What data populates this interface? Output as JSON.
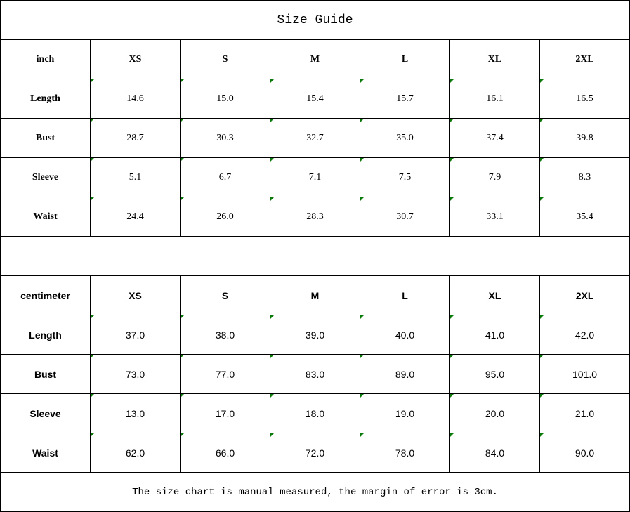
{
  "title": "Size Guide",
  "indicator_color": "#0a7a0a",
  "tables": [
    {
      "unit": "inch",
      "sizes": [
        "XS",
        "S",
        "M",
        "L",
        "XL",
        "2XL"
      ],
      "rows": [
        {
          "label": "Length",
          "values": [
            "14.6",
            "15.0",
            "15.4",
            "15.7",
            "16.1",
            "16.5"
          ]
        },
        {
          "label": "Bust",
          "values": [
            "28.7",
            "30.3",
            "32.7",
            "35.0",
            "37.4",
            "39.8"
          ]
        },
        {
          "label": "Sleeve",
          "values": [
            "5.1",
            "6.7",
            "7.1",
            "7.5",
            "7.9",
            "8.3"
          ]
        },
        {
          "label": "Waist",
          "values": [
            "24.4",
            "26.0",
            "28.3",
            "30.7",
            "33.1",
            "35.4"
          ]
        }
      ]
    },
    {
      "unit": "centimeter",
      "sizes": [
        "XS",
        "S",
        "M",
        "L",
        "XL",
        "2XL"
      ],
      "rows": [
        {
          "label": "Length",
          "values": [
            "37.0",
            "38.0",
            "39.0",
            "40.0",
            "41.0",
            "42.0"
          ]
        },
        {
          "label": "Bust",
          "values": [
            "73.0",
            "77.0",
            "83.0",
            "89.0",
            "95.0",
            "101.0"
          ]
        },
        {
          "label": "Sleeve",
          "values": [
            "13.0",
            "17.0",
            "18.0",
            "19.0",
            "20.0",
            "21.0"
          ]
        },
        {
          "label": "Waist",
          "values": [
            "62.0",
            "66.0",
            "72.0",
            "78.0",
            "84.0",
            "90.0"
          ]
        }
      ]
    }
  ],
  "note": "The size chart is manual measured, the margin of error is 3cm."
}
